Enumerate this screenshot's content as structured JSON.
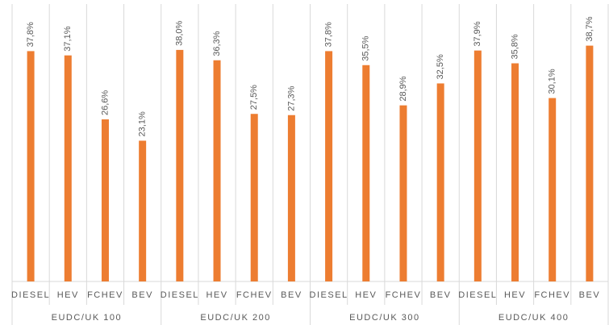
{
  "chart_data": {
    "type": "bar",
    "categories": [
      "DIESEL",
      "HEV",
      "FCHEV",
      "BEV",
      "DIESEL",
      "HEV",
      "FCHEV",
      "BEV",
      "DIESEL",
      "HEV",
      "FCHEV",
      "BEV",
      "DIESEL",
      "HEV",
      "FCHEV",
      "BEV"
    ],
    "groups": [
      "EUDC/UK 100",
      "EUDC/UK 200",
      "EUDC/UK 300",
      "EUDC/UK 400"
    ],
    "values": [
      37.8,
      37.1,
      26.6,
      23.1,
      38.0,
      36.3,
      27.5,
      27.3,
      37.8,
      35.5,
      28.9,
      32.5,
      37.9,
      35.8,
      30.1,
      38.7
    ],
    "value_labels": [
      "37,8%",
      "37,1%",
      "26,6%",
      "23,1%",
      "38,0%",
      "36,3%",
      "27,5%",
      "27,3%",
      "37,8%",
      "35,5%",
      "28,9%",
      "32,5%",
      "37,9%",
      "35,8%",
      "30,1%",
      "38,7%"
    ],
    "color": "#ed7d31",
    "ylim": [
      0,
      45
    ]
  }
}
